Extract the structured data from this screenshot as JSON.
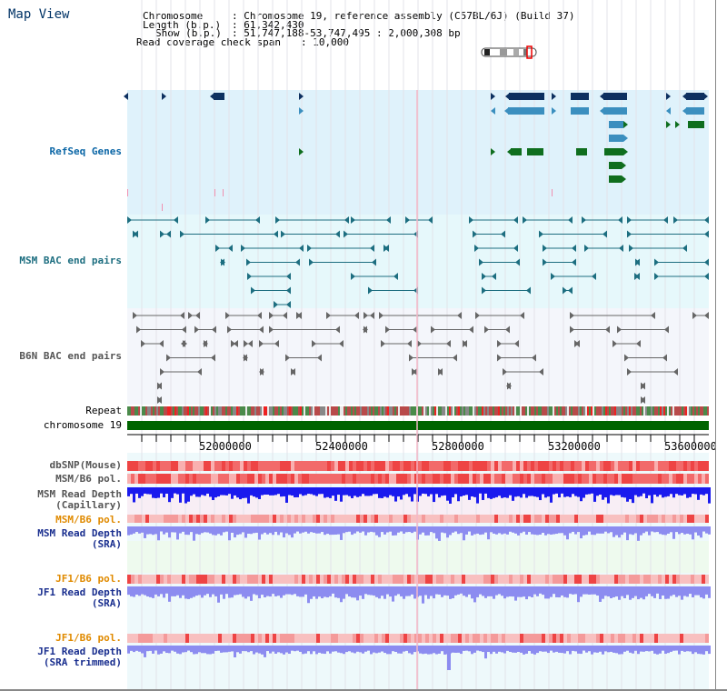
{
  "page": {
    "title": "Map View"
  },
  "info": {
    "chromosome_label": "Chromosome",
    "chromosome_value": ": Chromosome 19, reference assembly (C57BL/6J) (Build 37)",
    "length_label": "Length (b.p.)",
    "length_value": ": 61,342,430",
    "show_label": "Show (b.p.)",
    "show_value": ": 51,747,188-53,747,495 : 2,000,308 bp",
    "coverage_label": "Read coverage check span",
    "coverage_value": ": 10,000"
  },
  "tracks": {
    "refseq": "RefSeq Genes",
    "msm_bac": "MSM BAC end pairs",
    "b6n_bac": "B6N BAC end pairs",
    "repeat": "Repeat",
    "chromosome": "chromosome 19",
    "dbsnp": "dbSNP(Mouse)",
    "msm_b6_pol": "MSM/B6 pol.",
    "msm_depth_cap_1": "MSM Read Depth",
    "msm_depth_cap_2": "(Capillary)",
    "msm_b6_pol_sra": "MSM/B6 pol.",
    "msm_depth_sra_1": "MSM Read Depth",
    "msm_depth_sra_2": "(SRA)",
    "jf1_b6_pol": "JF1/B6 pol.",
    "jf1_depth_sra_1": "JF1 Read Depth",
    "jf1_depth_sra_2": "(SRA)",
    "jf1_b6_pol_trim": "JF1/B6 pol.",
    "jf1_depth_trim_1": "JF1 Read Depth",
    "jf1_depth_trim_2": "(SRA trimmed)"
  },
  "axis": {
    "ticks": [
      "52000000",
      "52400000",
      "52800000",
      "53200000",
      "53600000"
    ]
  },
  "colors": {
    "refseq_bg": "#dff2fb",
    "msm_bac_bg": "#e6f8fb",
    "b6n_bg": "#f4f6fb",
    "gene_dark": "#0d3060",
    "gene_mid": "#3b8fbf",
    "gene_green": "#0f6e1e",
    "bac_line": "#1d6e80",
    "b6n_line": "#666666",
    "chrom_green": "#006400",
    "snp_red": "#ee3333",
    "depth_blue": "#1a1aee",
    "depth_light": "#8c8cf0"
  }
}
